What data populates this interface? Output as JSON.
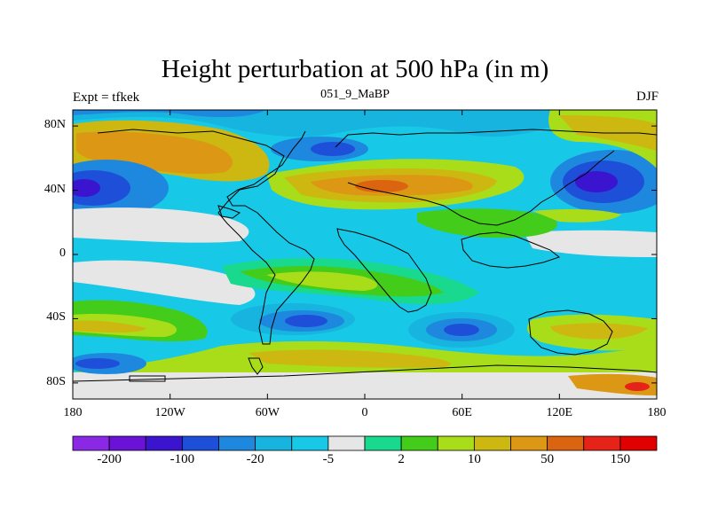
{
  "map": {
    "title": "Height perturbation at 500 hPa (in m)",
    "left_label": "Expt = tfkek",
    "center_label": "051_9_MaBP",
    "right_label": "DJF",
    "lat_labels": [
      "80N",
      "40N",
      "0",
      "40S",
      "80S"
    ],
    "lat_values": [
      80,
      40,
      0,
      -40,
      -80
    ],
    "lon_labels": [
      "180",
      "120W",
      "60W",
      "0",
      "60E",
      "120E",
      "180"
    ],
    "lon_values": [
      -180,
      -120,
      -60,
      0,
      60,
      120,
      180
    ],
    "extent": {
      "lon": [
        -180,
        180
      ],
      "lat": [
        -90,
        90
      ]
    },
    "colors": {
      "background": "#ffffff",
      "frame": "#000000",
      "coast": "#000000"
    }
  },
  "colorbar": {
    "labels": [
      "-200",
      "-100",
      "-20",
      "-5",
      "2",
      "10",
      "50",
      "150"
    ],
    "colors": [
      "#8a28e6",
      "#6a12d6",
      "#3a14cf",
      "#1e4fd8",
      "#1e88df",
      "#17b4df",
      "#17c9e6",
      "#e6e6e6",
      "#18d98e",
      "#44cc1a",
      "#a9dd1a",
      "#cdb812",
      "#dc9714",
      "#db6410",
      "#e62318",
      "#e00000"
    ]
  }
}
